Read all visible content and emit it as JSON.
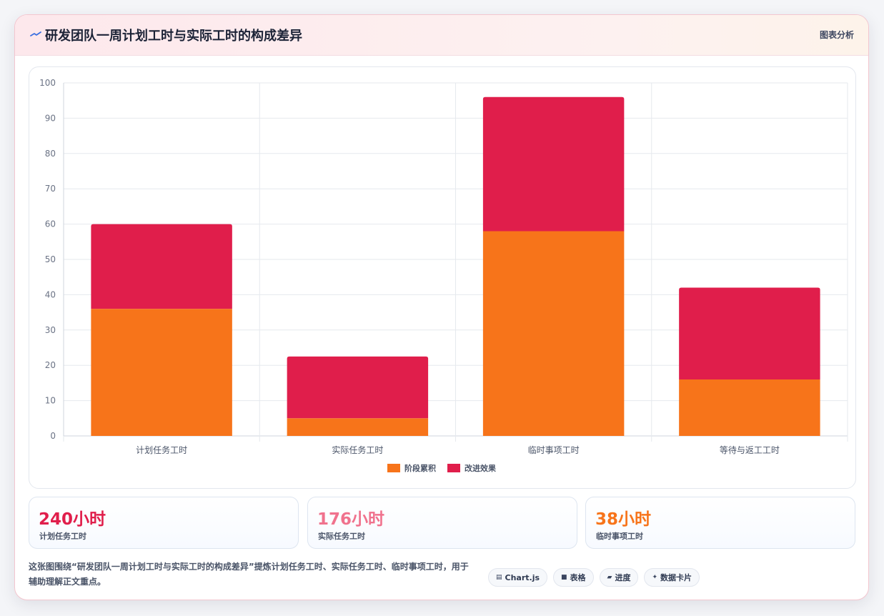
{
  "header": {
    "title": "研发团队一周计划工时与实际工时的构成差异",
    "tag": "图表分析"
  },
  "chart_data": {
    "type": "bar",
    "stacked": true,
    "categories": [
      "计划任务工时",
      "实际任务工时",
      "临时事项工时",
      "等待与返工工时"
    ],
    "series": [
      {
        "name": "阶段累积",
        "color": "#f7741a",
        "values": [
          36,
          5,
          58,
          16
        ]
      },
      {
        "name": "改进效果",
        "color": "#e01e4b",
        "values": [
          24,
          17.5,
          38,
          26
        ]
      }
    ],
    "ylim": [
      0,
      100
    ],
    "yticks": [
      0,
      10,
      20,
      30,
      40,
      50,
      60,
      70,
      80,
      90,
      100
    ],
    "grid": true,
    "legend_position": "bottom"
  },
  "stats": [
    {
      "value": "240小时",
      "label": "计划任务工时",
      "color": "#e01e4b"
    },
    {
      "value": "176小时",
      "label": "实际任务工时",
      "color": "#f0728d"
    },
    {
      "value": "38小时",
      "label": "临时事项工时",
      "color": "#f7741a"
    }
  ],
  "description": "这张图围绕“研发团队一周计划工时与实际工时的构成差异”提炼计划任务工时、实际任务工时、临时事项工时，用于辅助理解正文重点。",
  "pills": [
    {
      "icon": "chart-icon",
      "glyph": "▤",
      "label": "Chart.js"
    },
    {
      "icon": "table-icon",
      "glyph": "■",
      "label": "表格"
    },
    {
      "icon": "progress-icon",
      "glyph": "▰",
      "label": "进度"
    },
    {
      "icon": "sparkle-icon",
      "glyph": "✦",
      "label": "数据卡片"
    }
  ]
}
